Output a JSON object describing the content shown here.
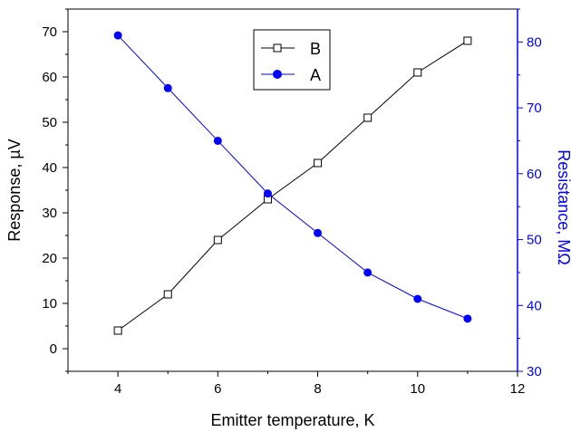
{
  "chart_data": {
    "type": "line",
    "xlabel": "Emitter temperature, K",
    "ylabel_left": "Response, µV",
    "ylabel_right": "Resistance, MΩ",
    "xlim": [
      3,
      12
    ],
    "ylim_left": [
      -5,
      75
    ],
    "ylim_right": [
      30,
      85
    ],
    "x_ticks": [
      4,
      6,
      8,
      10,
      12
    ],
    "y_left_ticks": [
      0,
      10,
      20,
      30,
      40,
      50,
      60,
      70
    ],
    "y_right_ticks": [
      30,
      40,
      50,
      60,
      70,
      80
    ],
    "legend_position": "top-center",
    "series": [
      {
        "name": "B",
        "axis": "left",
        "marker": "open-square",
        "color": "#000000",
        "x": [
          4,
          5,
          6,
          7,
          8,
          9,
          10,
          11
        ],
        "values": [
          4,
          12,
          24,
          33,
          41,
          51,
          61,
          68
        ]
      },
      {
        "name": "A",
        "axis": "right",
        "marker": "filled-circle",
        "color": "#0000ff",
        "x": [
          4,
          5,
          6,
          7,
          8,
          9,
          10,
          11
        ],
        "values": [
          81,
          73,
          65,
          57,
          51,
          45,
          41,
          38
        ]
      }
    ]
  }
}
